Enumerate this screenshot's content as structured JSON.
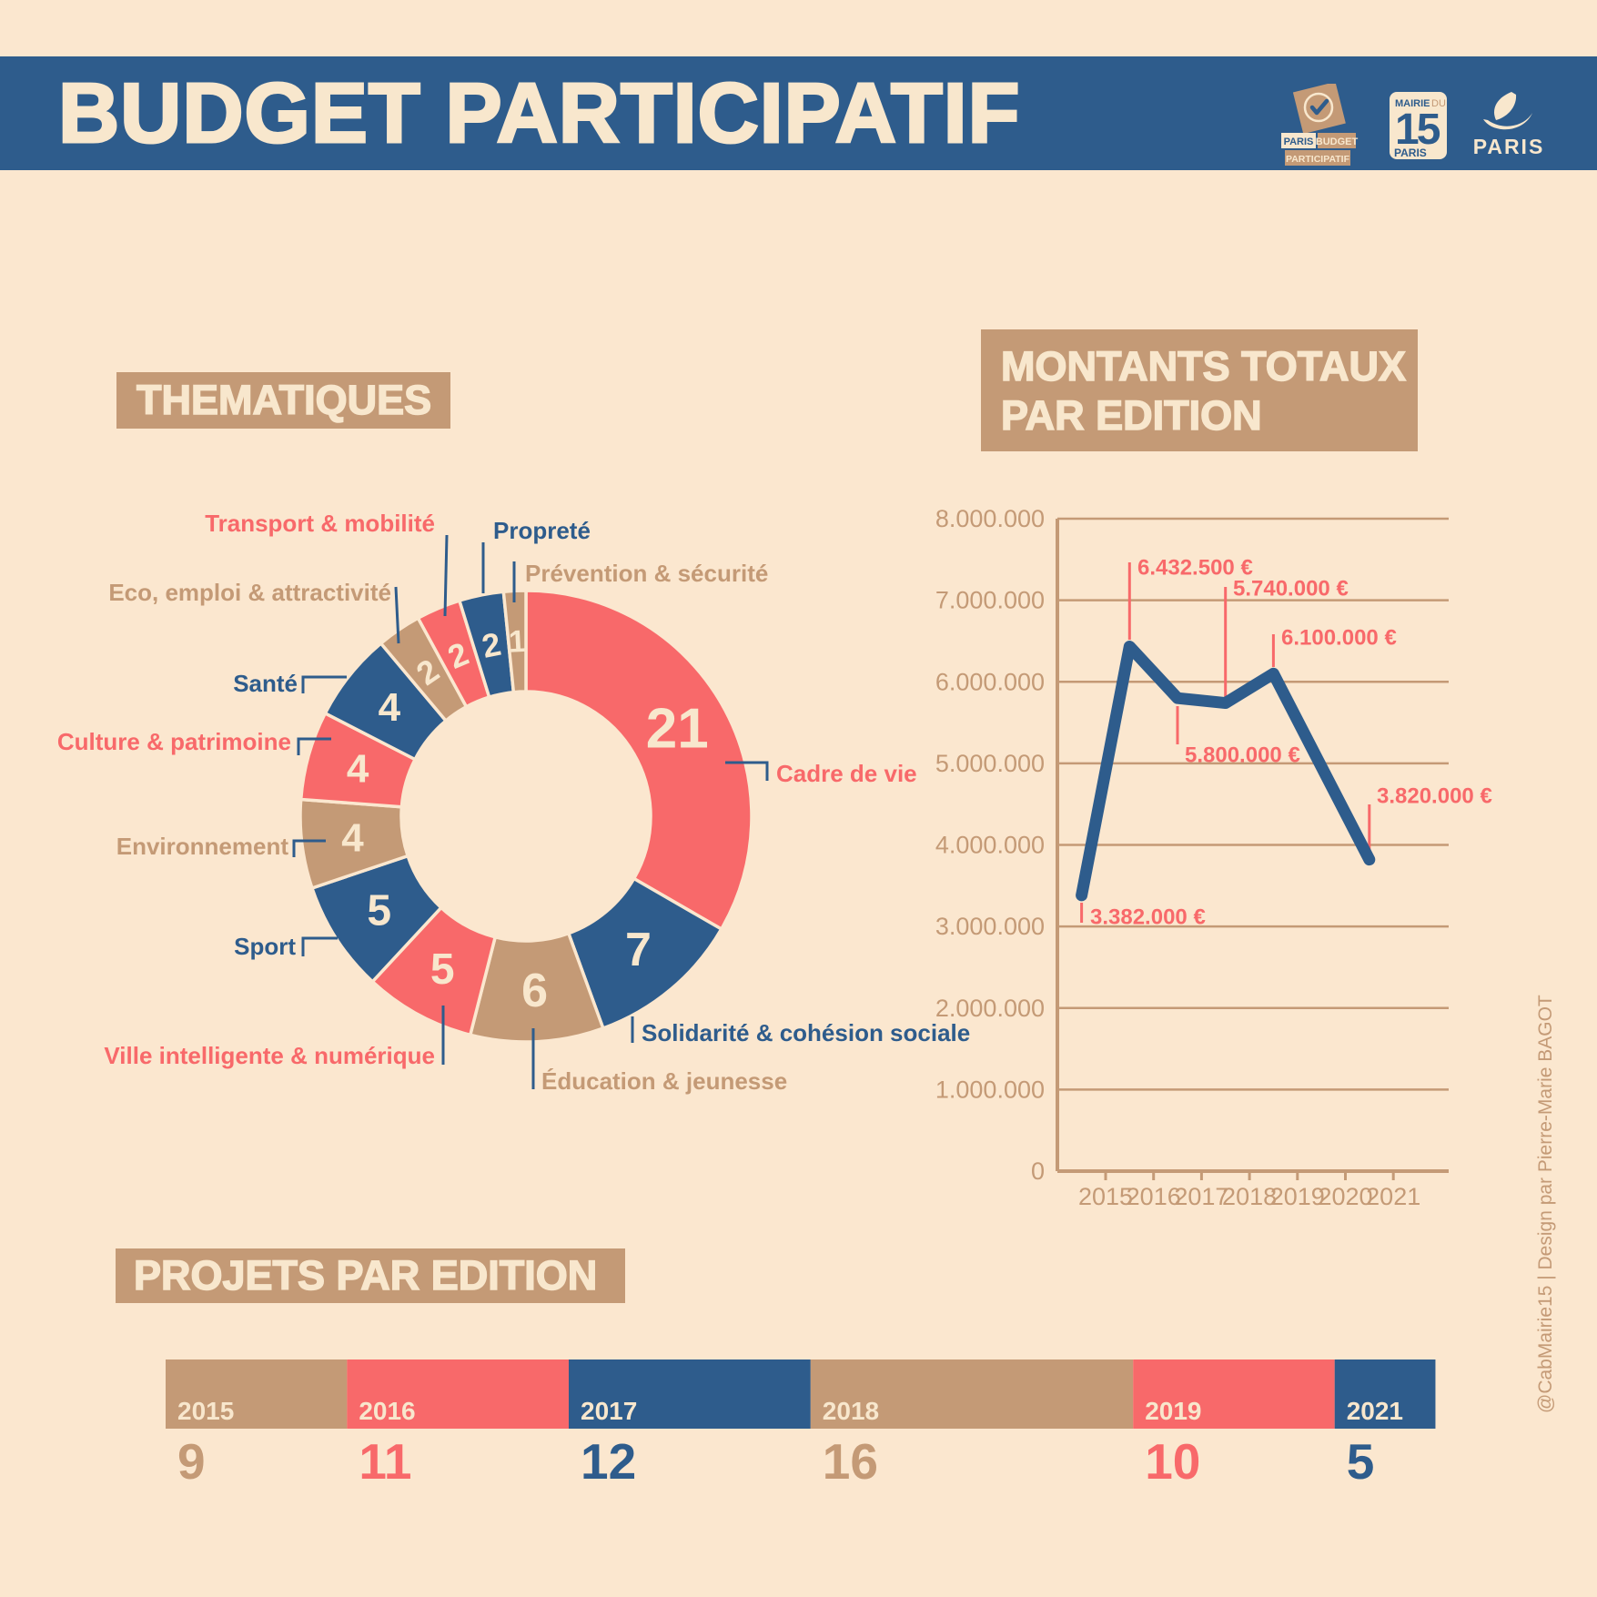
{
  "colors": {
    "background": "#FBE7CF",
    "cream": "#F8E7CD",
    "red": "#F8696A",
    "blue": "#2E5C8C",
    "tan": "#C49A76"
  },
  "header": {
    "title": "BUDGET PARTICIPATIF",
    "logo_budget": {
      "paris": "PARIS",
      "budget": "BUDGET",
      "participatif": "PARTICIPATIF"
    },
    "logo_mairie15": {
      "mairie": "MAIRIE",
      "du": "DU",
      "quinze": "15",
      "paris": "PARIS"
    },
    "logo_paris": {
      "paris": "PARIS"
    }
  },
  "thematiques": {
    "section_title": "THEMATIQUES"
  },
  "montants": {
    "section_title_line1": "MONTANTS TOTAUX",
    "section_title_line2": "PAR EDITION"
  },
  "projets": {
    "section_title": "PROJETS PAR EDITION"
  },
  "watermark": "@CabMairie15 | Design par Pierre-Marie BAGOT",
  "chart_data": [
    {
      "id": "thematiques_donut",
      "type": "pie",
      "title": "THEMATIQUES",
      "items": [
        {
          "id": "cadre",
          "label": "Cadre de vie",
          "value": 21,
          "color": "red"
        },
        {
          "id": "solidarite",
          "label": "Solidarité & cohésion sociale",
          "value": 7,
          "color": "blue"
        },
        {
          "id": "education",
          "label": "Éducation & jeunesse",
          "value": 6,
          "color": "tan"
        },
        {
          "id": "ville",
          "label": "Ville intelligente & numérique",
          "value": 5,
          "color": "red"
        },
        {
          "id": "sport",
          "label": "Sport",
          "value": 5,
          "color": "blue"
        },
        {
          "id": "environnement",
          "label": "Environnement",
          "value": 4,
          "color": "tan"
        },
        {
          "id": "culture",
          "label": "Culture & patrimoine",
          "value": 4,
          "color": "red"
        },
        {
          "id": "sante",
          "label": "Santé",
          "value": 4,
          "color": "blue"
        },
        {
          "id": "eco",
          "label": "Eco, emploi & attractivité",
          "value": 2,
          "color": "tan"
        },
        {
          "id": "transport",
          "label": "Transport & mobilité",
          "value": 2,
          "color": "red"
        },
        {
          "id": "proprete",
          "label": "Propreté",
          "value": 2,
          "color": "blue"
        },
        {
          "id": "prevention",
          "label": "Prévention & sécurité",
          "value": 1,
          "color": "tan"
        }
      ]
    },
    {
      "id": "montants_line",
      "type": "line",
      "title": "MONTANTS TOTAUX PAR EDITION",
      "x": [
        2015,
        2016,
        2017,
        2018,
        2019,
        2021
      ],
      "y": [
        3382000,
        6432500,
        5800000,
        5740000,
        6100000,
        3820000
      ],
      "point_labels": [
        "3.382.000 €",
        "6.432.500 €",
        "5.800.000 €",
        "5.740.000 €",
        "6.100.000 €",
        "3.820.000 €"
      ],
      "ylim": [
        0,
        8000000
      ],
      "ytick_labels": [
        "0",
        "1.000.000",
        "2.000.000",
        "3.000.000",
        "4.000.000",
        "5.000.000",
        "6.000.000",
        "7.000.000",
        "8.000.000"
      ],
      "xtick_labels": [
        "2015",
        "2016",
        "2017",
        "2018",
        "2019",
        "2020",
        "2021"
      ],
      "grid": true,
      "legend": false
    },
    {
      "id": "projets_bar",
      "type": "bar",
      "title": "PROJETS PAR EDITION",
      "categories": [
        "2015",
        "2016",
        "2017",
        "2018",
        "2019",
        "2021"
      ],
      "values": [
        9,
        11,
        12,
        16,
        10,
        5
      ],
      "colors": [
        "tan",
        "red",
        "blue",
        "tan",
        "red",
        "blue"
      ]
    }
  ]
}
